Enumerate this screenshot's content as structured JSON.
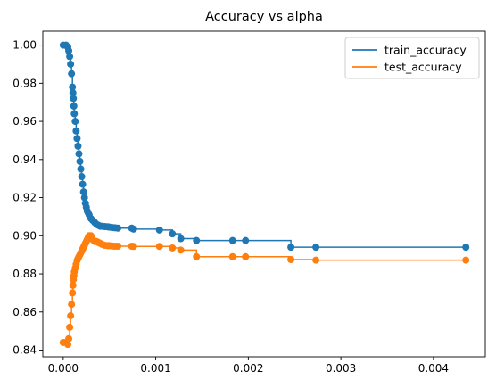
{
  "chart_data": {
    "type": "line",
    "title": "Accuracy vs alpha",
    "xlabel": "",
    "ylabel": "",
    "xlim": [
      -0.00022,
      0.00456
    ],
    "ylim": [
      0.8365,
      1.0073
    ],
    "xticks": [
      0.0,
      0.001,
      0.002,
      0.003,
      0.004
    ],
    "xtick_labels": [
      "0.000",
      "0.001",
      "0.002",
      "0.003",
      "0.004"
    ],
    "yticks": [
      0.84,
      0.86,
      0.88,
      0.9,
      0.92,
      0.94,
      0.96,
      0.98,
      1.0
    ],
    "ytick_labels": [
      "0.84",
      "0.86",
      "0.88",
      "0.90",
      "0.92",
      "0.94",
      "0.96",
      "0.98",
      "1.00"
    ],
    "grid": false,
    "legend_position": "top-right",
    "drawstyle": "steps-post",
    "marker": "o",
    "series": [
      {
        "name": "train_accuracy",
        "color": "#1f77b4",
        "x": [
          0.0,
          3e-05,
          5e-05,
          6e-05,
          7e-05,
          8e-05,
          9e-05,
          0.0001,
          0.000105,
          0.00011,
          0.000115,
          0.00012,
          0.00013,
          0.00014,
          0.00015,
          0.00016,
          0.00017,
          0.00018,
          0.00019,
          0.0002,
          0.00021,
          0.00022,
          0.00023,
          0.00024,
          0.00025,
          0.00026,
          0.00027,
          0.00028,
          0.0003,
          0.00032,
          0.00034,
          0.00036,
          0.00038,
          0.0004,
          0.00042,
          0.00045,
          0.00048,
          0.0005,
          0.00053,
          0.00056,
          0.00059,
          0.00074,
          0.00076,
          0.00104,
          0.00118,
          0.00127,
          0.00144,
          0.00183,
          0.00197,
          0.00246,
          0.00273,
          0.00435
        ],
        "y": [
          1.0,
          1.0,
          0.999,
          0.997,
          0.994,
          0.99,
          0.985,
          0.978,
          0.975,
          0.972,
          0.968,
          0.964,
          0.96,
          0.955,
          0.951,
          0.947,
          0.943,
          0.939,
          0.935,
          0.931,
          0.927,
          0.923,
          0.92,
          0.917,
          0.915,
          0.913,
          0.912,
          0.911,
          0.909,
          0.908,
          0.907,
          0.906,
          0.9055,
          0.905,
          0.905,
          0.9048,
          0.9047,
          0.9045,
          0.9043,
          0.9042,
          0.904,
          0.904,
          0.9035,
          0.903,
          0.901,
          0.8985,
          0.8975,
          0.8975,
          0.8975,
          0.894,
          0.894,
          0.894
        ]
      },
      {
        "name": "test_accuracy",
        "color": "#ff7f0e",
        "x": [
          0.0,
          3e-05,
          5e-05,
          6e-05,
          7e-05,
          8e-05,
          9e-05,
          0.0001,
          0.000105,
          0.00011,
          0.000115,
          0.00012,
          0.00013,
          0.00014,
          0.00015,
          0.00016,
          0.00017,
          0.00018,
          0.00019,
          0.0002,
          0.00021,
          0.00022,
          0.00023,
          0.00024,
          0.00025,
          0.00026,
          0.00027,
          0.00028,
          0.0003,
          0.00032,
          0.00034,
          0.00036,
          0.00038,
          0.0004,
          0.00042,
          0.00045,
          0.00048,
          0.0005,
          0.00053,
          0.00056,
          0.00059,
          0.00074,
          0.00076,
          0.00104,
          0.00118,
          0.00127,
          0.00144,
          0.00183,
          0.00197,
          0.00246,
          0.00273,
          0.00435
        ],
        "y": [
          0.844,
          0.844,
          0.843,
          0.846,
          0.852,
          0.858,
          0.864,
          0.87,
          0.874,
          0.877,
          0.879,
          0.881,
          0.883,
          0.885,
          0.887,
          0.888,
          0.889,
          0.89,
          0.891,
          0.892,
          0.893,
          0.894,
          0.895,
          0.896,
          0.897,
          0.898,
          0.899,
          0.9,
          0.9,
          0.898,
          0.897,
          0.897,
          0.8965,
          0.896,
          0.8955,
          0.895,
          0.8948,
          0.8948,
          0.8946,
          0.8945,
          0.8945,
          0.8945,
          0.8944,
          0.8944,
          0.8936,
          0.8925,
          0.889,
          0.889,
          0.889,
          0.8875,
          0.8872,
          0.8872
        ]
      }
    ]
  }
}
